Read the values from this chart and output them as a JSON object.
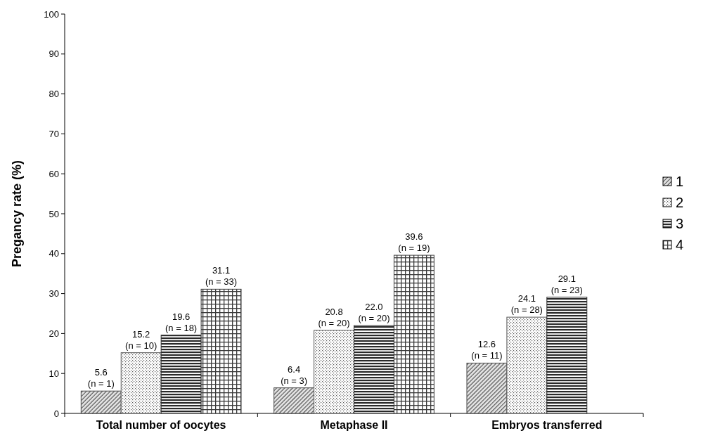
{
  "chart_data": {
    "type": "bar",
    "ylabel": "Pregancy rate (%)",
    "categories": [
      "Total number of oocytes",
      "Metaphase II",
      "Embryos transferred"
    ],
    "series": [
      {
        "name": "1",
        "color": "#4a4a4a",
        "values": [
          5.6,
          6.4,
          12.6
        ],
        "value_labels": [
          "5.6\n(n = 1)",
          "6.4\n(n = 3)",
          "12.6\n(n = 11)"
        ]
      },
      {
        "name": "2",
        "color": "#5a5a5a",
        "values": [
          15.2,
          20.8,
          24.1
        ],
        "value_labels": [
          "15.2\n(n = 10)",
          "20.8\n(n = 20)",
          "24.1\n(n = 28)"
        ]
      },
      {
        "name": "3",
        "color": "#2a2a2a",
        "values": [
          19.6,
          22.0,
          29.1
        ],
        "value_labels": [
          "19.6\n(n = 18)",
          "22.0\n(n = 20)",
          "29.1\n(n = 23)"
        ]
      },
      {
        "name": "4",
        "color": "#3a3a3a",
        "values": [
          31.1,
          39.6,
          null
        ],
        "value_labels": [
          "31.1\n(n = 33)",
          "39.6\n(n = 19)",
          null
        ]
      }
    ],
    "ylim": [
      0,
      100
    ],
    "yticks": [
      0,
      10,
      20,
      30,
      40,
      50,
      60,
      70,
      80,
      90,
      100
    ],
    "legend": "right"
  }
}
